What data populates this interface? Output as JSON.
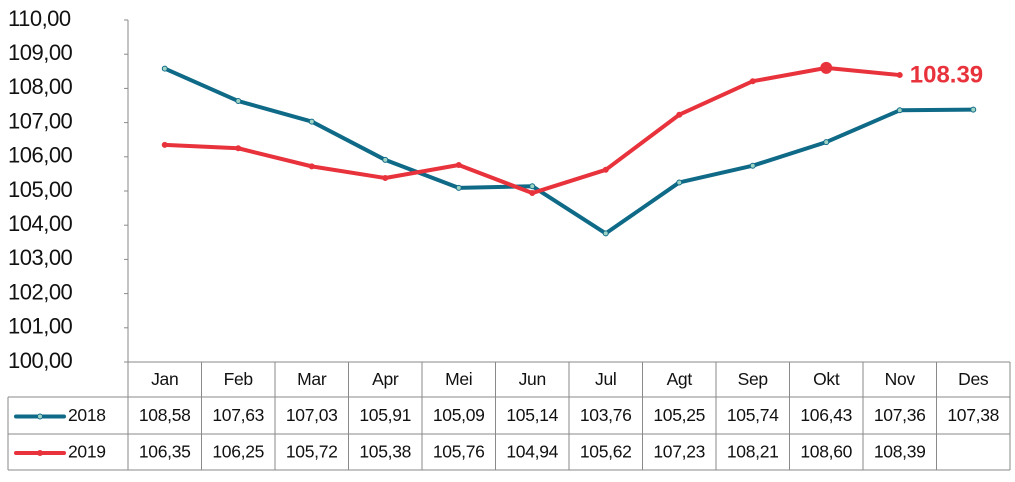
{
  "chart_data": {
    "type": "line",
    "categories": [
      "Jan",
      "Feb",
      "Mar",
      "Apr",
      "Mei",
      "Jun",
      "Jul",
      "Agt",
      "Sep",
      "Okt",
      "Nov",
      "Des"
    ],
    "series": [
      {
        "name": "2018",
        "color": "#0f6a88",
        "values": [
          108.58,
          107.63,
          107.03,
          105.91,
          105.09,
          105.14,
          103.76,
          105.25,
          105.74,
          106.43,
          107.36,
          107.38
        ],
        "value_labels": [
          "108,58",
          "107,63",
          "107,03",
          "105,91",
          "105,09",
          "105,14",
          "103,76",
          "105,25",
          "105,74",
          "106,43",
          "107,36",
          "107,38"
        ]
      },
      {
        "name": "2019",
        "color": "#e8323c",
        "values": [
          106.35,
          106.25,
          105.72,
          105.38,
          105.76,
          104.94,
          105.62,
          107.23,
          108.21,
          108.6,
          108.39,
          null
        ],
        "value_labels": [
          "106,35",
          "106,25",
          "105,72",
          "105,38",
          "105,76",
          "104,94",
          "105,62",
          "107,23",
          "108,21",
          "108,60",
          "108,39",
          null
        ]
      }
    ],
    "ylim": [
      100,
      110
    ],
    "yticks": [
      {
        "value": 100,
        "label": "100,00"
      },
      {
        "value": 101,
        "label": "101,00"
      },
      {
        "value": 102,
        "label": "102,00"
      },
      {
        "value": 103,
        "label": "103,00"
      },
      {
        "value": 104,
        "label": "104,00"
      },
      {
        "value": 105,
        "label": "105,00"
      },
      {
        "value": 106,
        "label": "106,00"
      },
      {
        "value": 107,
        "label": "107,00"
      },
      {
        "value": 108,
        "label": "108,00"
      },
      {
        "value": 109,
        "label": "109,00"
      },
      {
        "value": 110,
        "label": "110,00"
      }
    ],
    "annotations": [
      {
        "text": "108.39",
        "color": "#e8323c"
      }
    ]
  }
}
